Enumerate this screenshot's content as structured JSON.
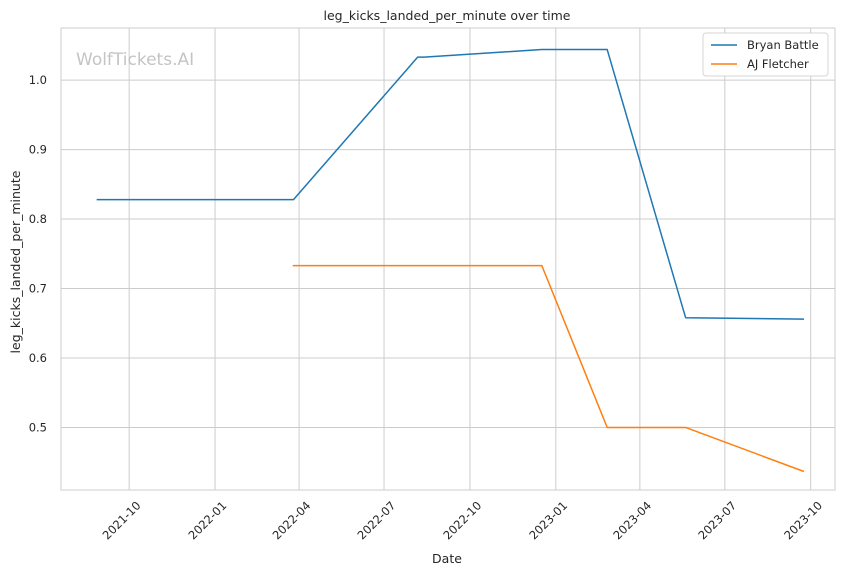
{
  "chart_data": {
    "type": "line",
    "title": "leg_kicks_landed_per_minute over time",
    "xlabel": "Date",
    "ylabel": "leg_kicks_landed_per_minute",
    "watermark": "WolfTickets.AI",
    "x_ticks": [
      "2021-10",
      "2022-01",
      "2022-04",
      "2022-07",
      "2022-10",
      "2023-01",
      "2023-04",
      "2023-07",
      "2023-10"
    ],
    "y_ticks": [
      "0.5",
      "0.6",
      "0.7",
      "0.8",
      "0.9",
      "1.0"
    ],
    "xlim": [
      "2021-07-20",
      "2023-10-27"
    ],
    "ylim": [
      0.41,
      1.075
    ],
    "grid": true,
    "legend_position": "top-right",
    "series": [
      {
        "name": "Bryan Battle",
        "color": "#1f77b4",
        "points": [
          {
            "x": "2021-08-28",
            "y": 0.828
          },
          {
            "x": "2022-03-26",
            "y": 0.828
          },
          {
            "x": "2022-08-06",
            "y": 1.033
          },
          {
            "x": "2022-08-13",
            "y": 1.033
          },
          {
            "x": "2022-12-17",
            "y": 1.044
          },
          {
            "x": "2023-02-25",
            "y": 1.044
          },
          {
            "x": "2023-05-20",
            "y": 0.658
          },
          {
            "x": "2023-09-23",
            "y": 0.656
          }
        ]
      },
      {
        "name": "AJ Fletcher",
        "color": "#ff7f0e",
        "points": [
          {
            "x": "2022-03-26",
            "y": 0.733
          },
          {
            "x": "2022-12-17",
            "y": 0.733
          },
          {
            "x": "2023-02-25",
            "y": 0.5
          },
          {
            "x": "2023-05-20",
            "y": 0.5
          },
          {
            "x": "2023-09-23",
            "y": 0.437
          }
        ]
      }
    ]
  }
}
